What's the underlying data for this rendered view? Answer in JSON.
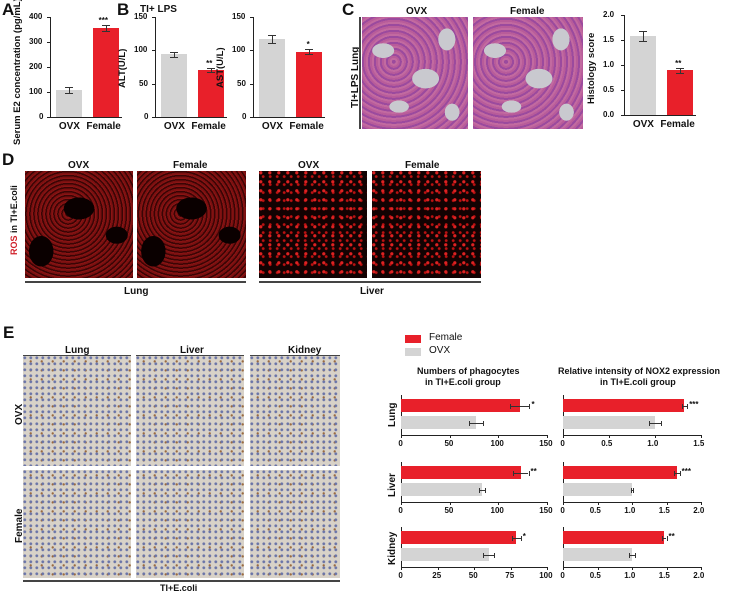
{
  "panels": {
    "A": {
      "letter": "A"
    },
    "B": {
      "letter": "B",
      "title": "TI+ LPS"
    },
    "C": {
      "letter": "C",
      "col_labels": [
        "OVX",
        "Female"
      ],
      "row_label": "TI+LPS   Lung"
    },
    "D": {
      "letter": "D",
      "row_label_red": "ROS",
      "row_label_rest": " in TI+E.coli",
      "lung_cols": [
        "OVX",
        "Female"
      ],
      "liver_cols": [
        "OVX",
        "Female"
      ],
      "group_lung": "Lung",
      "group_liver": "Liver"
    },
    "E": {
      "letter": "E",
      "col_labels": [
        "Lung",
        "Liver",
        "Kidney"
      ],
      "row_labels": [
        "OVX",
        "Female"
      ],
      "bottom_label": "TI+E.coli",
      "legend": [
        {
          "label": "Female",
          "color": "#e8202a"
        },
        {
          "label": "OVX",
          "color": "#d4d4d4"
        }
      ],
      "chart1_title": [
        "Numbers of phagocytes",
        "in TI+E.coli group"
      ],
      "chart2_title": [
        "Relative intensity of NOX2 expression",
        "in TI+E.coli group"
      ]
    }
  },
  "colors": {
    "female": "#e8202a",
    "ovx": "#d4d4d4"
  },
  "chart_data": [
    {
      "id": "A",
      "type": "bar",
      "title": "",
      "xlabel": "",
      "ylabel": "Serum E2 concentration (pg/mL)",
      "categories": [
        "OVX",
        "Female"
      ],
      "values": [
        107,
        355
      ],
      "errors": [
        12,
        12
      ],
      "significance": [
        "",
        "***"
      ],
      "ylim": [
        0,
        400
      ],
      "yticks": [
        "0",
        "100",
        "200",
        "300",
        "400"
      ]
    },
    {
      "id": "B1",
      "type": "bar",
      "title": "TI+ LPS",
      "ylabel": "ALT(U/L)",
      "categories": [
        "OVX",
        "Female"
      ],
      "values": [
        94,
        70
      ],
      "errors": [
        4,
        3
      ],
      "significance": [
        "",
        "**"
      ],
      "ylim": [
        0,
        150
      ],
      "yticks": [
        "0",
        "50",
        "100",
        "150"
      ]
    },
    {
      "id": "B2",
      "type": "bar",
      "title": "",
      "ylabel": "AST(U/L)",
      "categories": [
        "OVX",
        "Female"
      ],
      "values": [
        117,
        98
      ],
      "errors": [
        6,
        4
      ],
      "significance": [
        "",
        "*"
      ],
      "ylim": [
        0,
        150
      ],
      "yticks": [
        "0",
        "50",
        "100",
        "150"
      ]
    },
    {
      "id": "C",
      "type": "bar",
      "title": "",
      "ylabel": "Histology score",
      "categories": [
        "OVX",
        "Female"
      ],
      "values": [
        1.58,
        0.9
      ],
      "errors": [
        0.1,
        0.05
      ],
      "significance": [
        "",
        "**"
      ],
      "ylim": [
        0,
        2.0
      ],
      "yticks": [
        "0.0",
        "0.5",
        "1.0",
        "1.5",
        "2.0"
      ]
    },
    {
      "id": "E1",
      "type": "bar",
      "orientation": "horizontal",
      "title": "Numbers of phagocytes in TI+E.coli group",
      "legend": [
        "Female",
        "OVX"
      ],
      "groups": [
        {
          "name": "Lung",
          "Female": 122,
          "Female_err": 10,
          "OVX": 77,
          "OVX_err": 7,
          "sig": "*",
          "xlim": [
            0,
            150
          ],
          "xticks": [
            "0",
            "50",
            "100",
            "150"
          ]
        },
        {
          "name": "Liver",
          "Female": 123,
          "Female_err": 8,
          "OVX": 83,
          "OVX_err": 3,
          "sig": "**",
          "xlim": [
            0,
            150
          ],
          "xticks": [
            "0",
            "50",
            "100",
            "150"
          ]
        },
        {
          "name": "Kidney",
          "Female": 79,
          "Female_err": 3,
          "OVX": 60,
          "OVX_err": 4,
          "sig": "*",
          "xlim": [
            0,
            100
          ],
          "xticks": [
            "0",
            "25",
            "50",
            "75",
            "100"
          ]
        }
      ]
    },
    {
      "id": "E2",
      "type": "bar",
      "orientation": "horizontal",
      "title": "Relative intensity of NOX2 expression in TI+E.coli group",
      "legend": [
        "Female",
        "OVX"
      ],
      "groups": [
        {
          "name": "Lung",
          "Female": 1.32,
          "Female_err": 0.03,
          "OVX": 1.0,
          "OVX_err": 0.06,
          "sig": "***",
          "xlim": [
            0,
            1.5
          ],
          "xticks": [
            "0",
            "0.5",
            "1.0",
            "1.5"
          ]
        },
        {
          "name": "Liver",
          "Female": 1.65,
          "Female_err": 0.04,
          "OVX": 1.0,
          "OVX_err": 0.02,
          "sig": "***",
          "xlim": [
            0,
            2.0
          ],
          "xticks": [
            "0",
            "0.5",
            "1.0",
            "1.5",
            "2.0"
          ]
        },
        {
          "name": "Kidney",
          "Female": 1.47,
          "Female_err": 0.03,
          "OVX": 1.0,
          "OVX_err": 0.04,
          "sig": "**",
          "xlim": [
            0,
            2.0
          ],
          "xticks": [
            "0",
            "0.5",
            "1.0",
            "1.5",
            "2.0"
          ]
        }
      ]
    }
  ]
}
